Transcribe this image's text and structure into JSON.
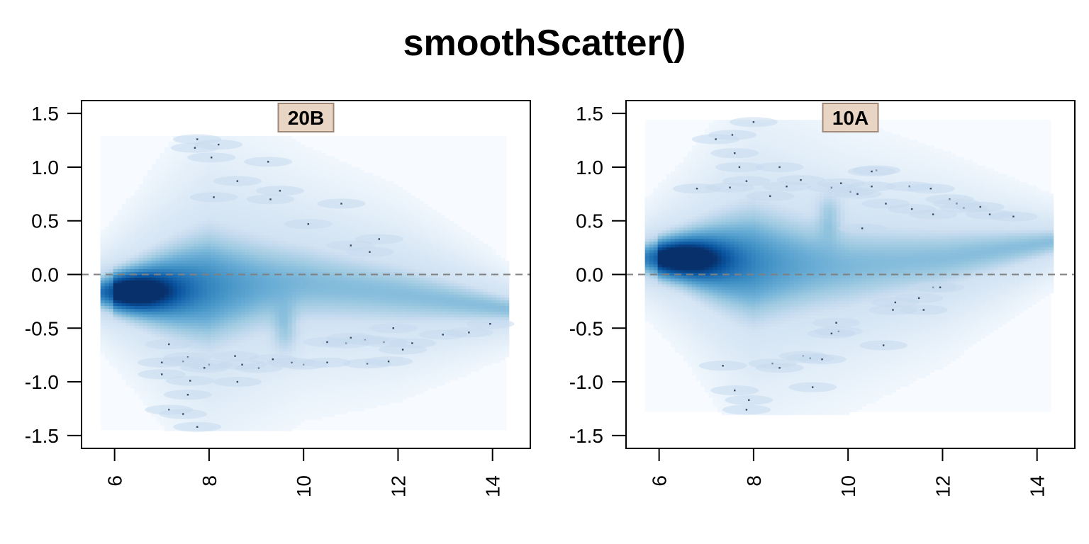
{
  "title": "smoothScatter()",
  "chart_data": {
    "type": "heatmap",
    "subtype": "smoothScatter",
    "title": "smoothScatter()",
    "xlabel": "",
    "ylabel": "",
    "shared_x_ticks": [
      6,
      8,
      10,
      12,
      14
    ],
    "shared_y_ticks": [
      "1.5",
      "1.0",
      "0.5",
      "0.0",
      "-0.5",
      "-1.0",
      "-1.5"
    ],
    "y_tick_values": [
      1.5,
      1.0,
      0.5,
      0.0,
      -0.5,
      -1.0,
      -1.5
    ],
    "xlim": [
      5.3,
      14.8
    ],
    "ylim": [
      -1.62,
      1.62
    ],
    "reference_line": {
      "y": 0.0,
      "style": "dashed",
      "color": "#808080"
    },
    "colors": {
      "low": "#f7fbff",
      "high": "#08306b",
      "strip": "#e8d5c4",
      "strip_border": "#a08878"
    },
    "panels": [
      {
        "label": "20B",
        "density_extent": {
          "x": [
            5.7,
            14.3
          ],
          "y": [
            -1.45,
            1.29
          ]
        },
        "trend": [
          [
            5.7,
            -0.17
          ],
          [
            6.4,
            -0.16
          ],
          [
            8,
            -0.12
          ],
          [
            10,
            -0.08
          ],
          [
            12,
            -0.18
          ],
          [
            14.3,
            -0.32
          ]
        ],
        "spread": [
          [
            5.7,
            0.12
          ],
          [
            6.4,
            0.2
          ],
          [
            8,
            0.4
          ],
          [
            10,
            0.28
          ],
          [
            12,
            0.22
          ],
          [
            14.3,
            0.1
          ]
        ],
        "core": {
          "x": 6.4,
          "y": -0.16
        },
        "outliers": [
          [
            7.75,
            1.26
          ],
          [
            7.7,
            1.18
          ],
          [
            8.05,
            1.09
          ],
          [
            8.2,
            1.21
          ],
          [
            9.25,
            1.05
          ],
          [
            8.6,
            0.87
          ],
          [
            9.5,
            0.78
          ],
          [
            9.3,
            0.7
          ],
          [
            8.1,
            0.72
          ],
          [
            10.1,
            0.47
          ],
          [
            10.8,
            0.66
          ],
          [
            11.0,
            0.27
          ],
          [
            11.6,
            0.33
          ],
          [
            11.4,
            0.21
          ],
          [
            13.95,
            -0.46
          ],
          [
            13.5,
            -0.54
          ],
          [
            12.95,
            -0.56
          ],
          [
            11.9,
            -0.5
          ],
          [
            12.3,
            -0.64
          ],
          [
            12.1,
            -0.7
          ],
          [
            11.7,
            -0.63
          ],
          [
            11.3,
            -0.61
          ],
          [
            11.0,
            -0.59
          ],
          [
            10.9,
            -0.64
          ],
          [
            10.5,
            -0.63
          ],
          [
            10.5,
            -0.82
          ],
          [
            10.0,
            -0.84
          ],
          [
            9.75,
            -0.82
          ],
          [
            11.35,
            -0.83
          ],
          [
            11.8,
            -0.81
          ],
          [
            9.35,
            -0.79
          ],
          [
            9.05,
            -0.87
          ],
          [
            8.7,
            -0.84
          ],
          [
            8.55,
            -0.76
          ],
          [
            8.0,
            -0.84
          ],
          [
            7.9,
            -0.87
          ],
          [
            7.55,
            -0.77
          ],
          [
            7.45,
            -0.81
          ],
          [
            7.0,
            -0.82
          ],
          [
            7.0,
            -0.93
          ],
          [
            7.15,
            -0.65
          ],
          [
            7.6,
            -0.99
          ],
          [
            8.6,
            -1.0
          ],
          [
            7.55,
            -1.12
          ],
          [
            7.15,
            -1.26
          ],
          [
            7.45,
            -1.3
          ],
          [
            7.75,
            -1.42
          ]
        ]
      },
      {
        "label": "10A",
        "density_extent": {
          "x": [
            5.7,
            14.3
          ],
          "y": [
            -1.28,
            1.44
          ]
        },
        "trend": [
          [
            5.7,
            0.15
          ],
          [
            6.5,
            0.15
          ],
          [
            8,
            0.1
          ],
          [
            10,
            0.08
          ],
          [
            12,
            0.15
          ],
          [
            14.3,
            0.3
          ]
        ],
        "spread": [
          [
            5.7,
            0.12
          ],
          [
            6.5,
            0.2
          ],
          [
            8,
            0.4
          ],
          [
            10,
            0.3
          ],
          [
            12,
            0.22
          ],
          [
            14.3,
            0.1
          ]
        ],
        "core": {
          "x": 6.5,
          "y": 0.15
        },
        "outliers": [
          [
            8.0,
            1.42
          ],
          [
            7.55,
            1.3
          ],
          [
            7.2,
            1.26
          ],
          [
            7.6,
            1.13
          ],
          [
            7.7,
            1.0
          ],
          [
            8.55,
            1.0
          ],
          [
            10.6,
            0.97
          ],
          [
            10.5,
            0.96
          ],
          [
            7.85,
            0.87
          ],
          [
            9.0,
            0.88
          ],
          [
            8.7,
            0.82
          ],
          [
            7.5,
            0.81
          ],
          [
            6.8,
            0.8
          ],
          [
            9.65,
            0.81
          ],
          [
            9.85,
            0.85
          ],
          [
            10.05,
            0.77
          ],
          [
            10.2,
            0.75
          ],
          [
            10.5,
            0.82
          ],
          [
            11.3,
            0.82
          ],
          [
            11.75,
            0.8
          ],
          [
            12.15,
            0.7
          ],
          [
            12.3,
            0.66
          ],
          [
            12.45,
            0.62
          ],
          [
            12.8,
            0.63
          ],
          [
            13.5,
            0.54
          ],
          [
            13.0,
            0.56
          ],
          [
            11.8,
            0.56
          ],
          [
            11.35,
            0.61
          ],
          [
            10.8,
            0.66
          ],
          [
            10.3,
            0.43
          ],
          [
            8.35,
            0.73
          ],
          [
            11.8,
            -0.12
          ],
          [
            11.95,
            -0.12
          ],
          [
            11.5,
            -0.22
          ],
          [
            11.0,
            -0.26
          ],
          [
            11.6,
            -0.33
          ],
          [
            10.95,
            -0.33
          ],
          [
            9.75,
            -0.45
          ],
          [
            9.8,
            -0.53
          ],
          [
            9.65,
            -0.55
          ],
          [
            10.75,
            -0.66
          ],
          [
            9.05,
            -0.76
          ],
          [
            9.2,
            -0.78
          ],
          [
            9.45,
            -0.79
          ],
          [
            8.4,
            -0.83
          ],
          [
            8.55,
            -0.87
          ],
          [
            7.35,
            -0.85
          ],
          [
            9.25,
            -1.05
          ],
          [
            7.6,
            -1.08
          ],
          [
            7.9,
            -1.17
          ],
          [
            7.85,
            -1.26
          ]
        ]
      }
    ]
  }
}
